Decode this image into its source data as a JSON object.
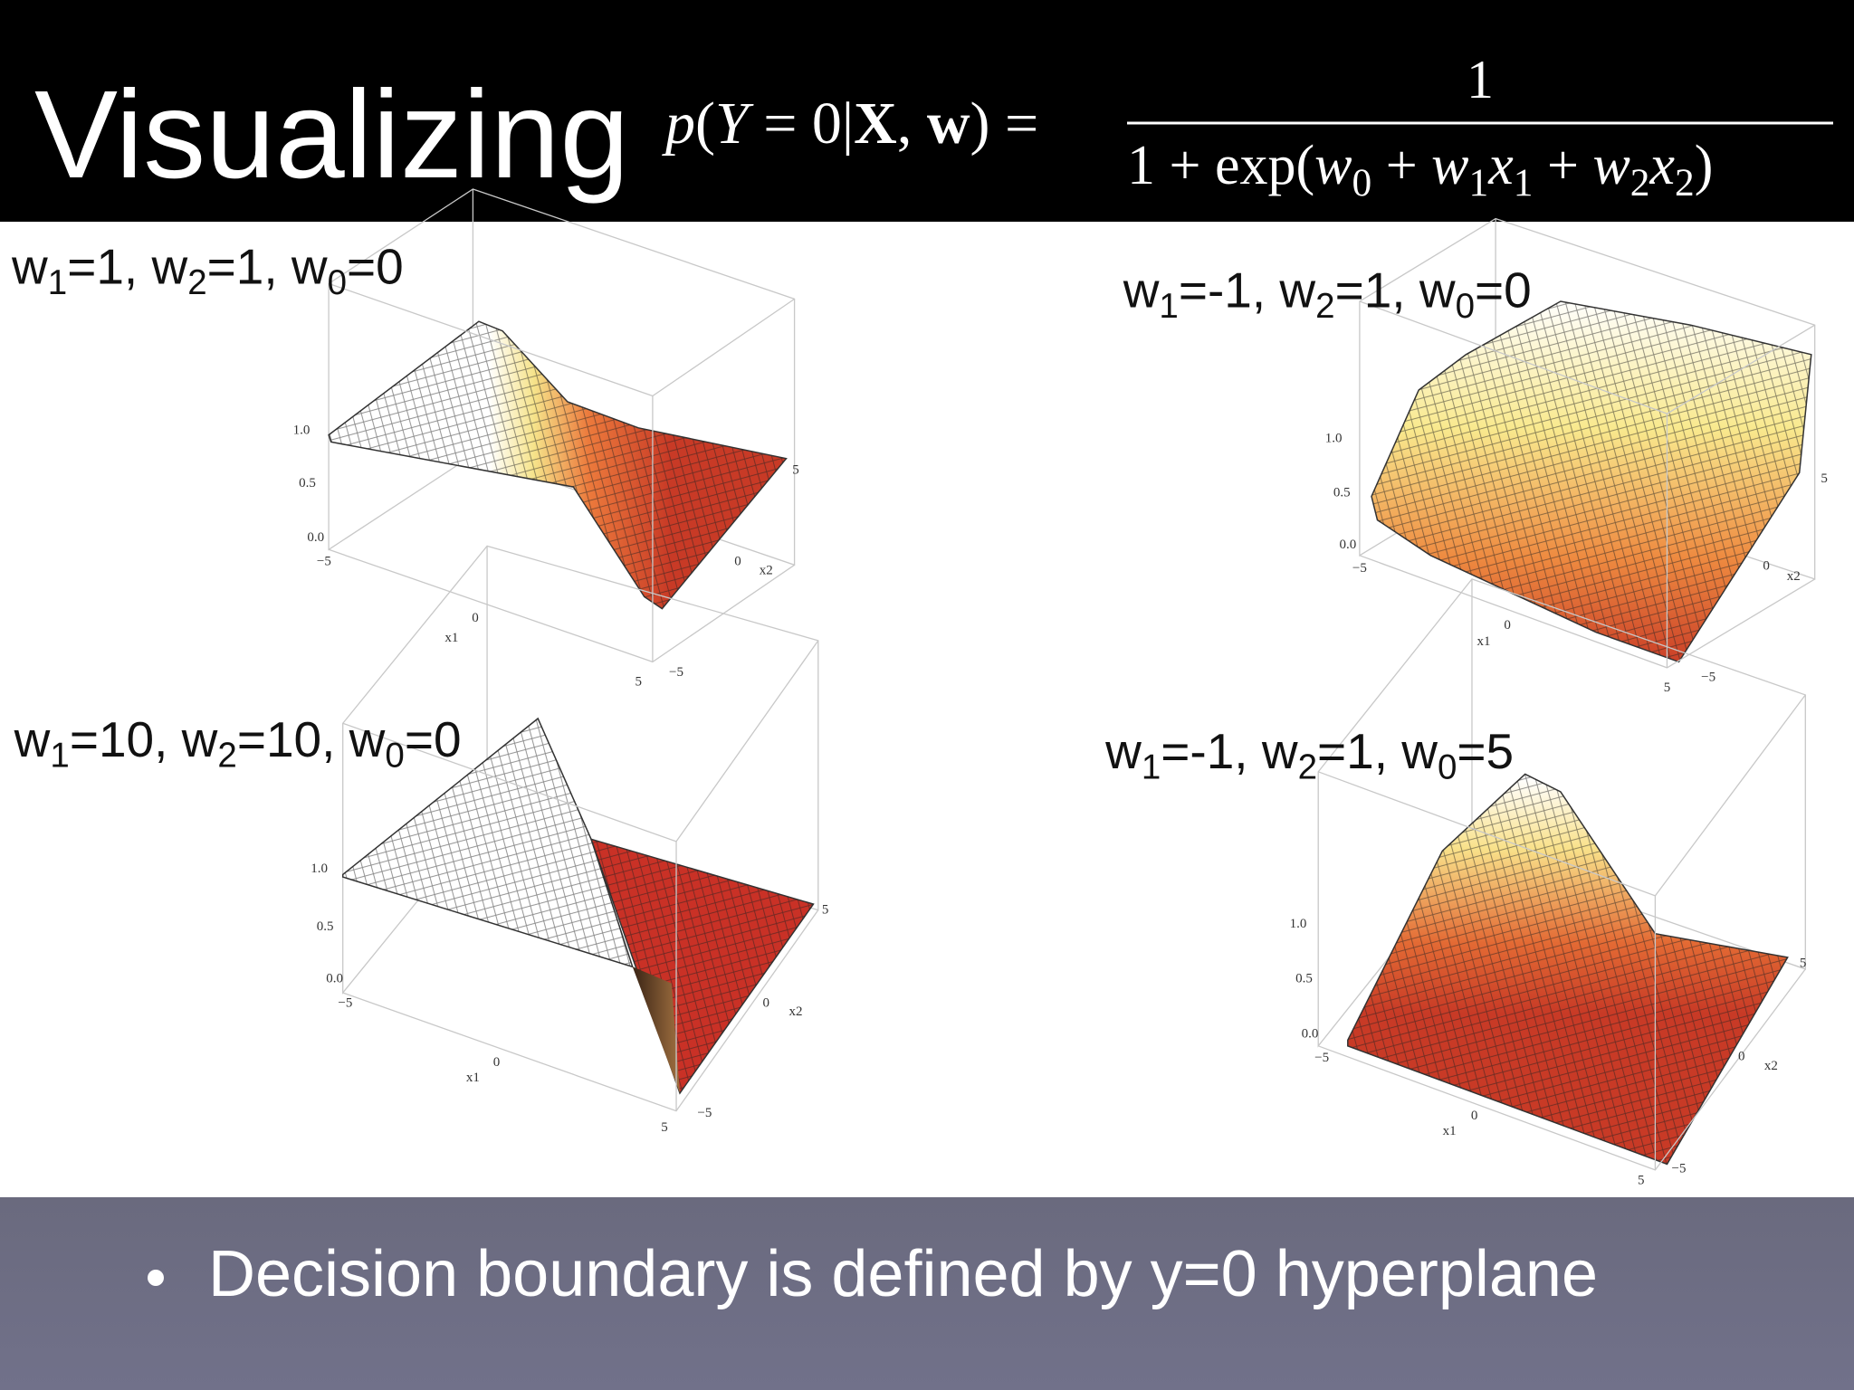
{
  "header": {
    "title": "Visualizing",
    "formula": {
      "lhs": [
        {
          "t": "p",
          "s": "i"
        },
        {
          "t": "("
        },
        {
          "t": "Y",
          "s": "i"
        },
        {
          "t": " = 0|"
        },
        {
          "t": "X",
          "s": "b"
        },
        {
          "t": ", "
        },
        {
          "t": "w",
          "s": "b"
        },
        {
          "t": ") ="
        }
      ],
      "numerator": "1",
      "denominator": [
        {
          "t": "1 + exp("
        },
        {
          "t": "w",
          "s": "i"
        },
        {
          "t": "0",
          "s": "sub"
        },
        {
          "t": " + "
        },
        {
          "t": "w",
          "s": "i"
        },
        {
          "t": "1",
          "s": "sub"
        },
        {
          "t": "x",
          "s": "i"
        },
        {
          "t": "1",
          "s": "sub"
        },
        {
          "t": " + "
        },
        {
          "t": "w",
          "s": "i"
        },
        {
          "t": "2",
          "s": "sub"
        },
        {
          "t": "x",
          "s": "i"
        },
        {
          "t": "2",
          "s": "sub"
        },
        {
          "t": ")"
        }
      ]
    }
  },
  "panels": [
    {
      "label": [
        {
          "t": "w"
        },
        {
          "t": "1",
          "s": "sub"
        },
        {
          "t": "=1, w"
        },
        {
          "t": "2",
          "s": "sub"
        },
        {
          "t": "=1, w"
        },
        {
          "t": "0",
          "s": "sub"
        },
        {
          "t": "=0"
        }
      ],
      "zticks": [
        "1.0",
        "0.5",
        "0.0"
      ],
      "x1ticks": [
        "−5",
        "0",
        "5"
      ],
      "x2ticks": [
        "−5",
        "0",
        "5"
      ],
      "x1label": "x1",
      "x2label": "x2"
    },
    {
      "label": [
        {
          "t": "w"
        },
        {
          "t": "1",
          "s": "sub"
        },
        {
          "t": "=-1, w"
        },
        {
          "t": "2",
          "s": "sub"
        },
        {
          "t": "=1, w"
        },
        {
          "t": "0",
          "s": "sub"
        },
        {
          "t": "=0"
        }
      ],
      "zticks": [
        "1.0",
        "0.5",
        "0.0"
      ],
      "x1ticks": [
        "−5",
        "0",
        "5"
      ],
      "x2ticks": [
        "−5",
        "0",
        "5"
      ],
      "x1label": "x1",
      "x2label": "x2"
    },
    {
      "label": [
        {
          "t": "w"
        },
        {
          "t": "1",
          "s": "sub"
        },
        {
          "t": "=10, w"
        },
        {
          "t": "2",
          "s": "sub"
        },
        {
          "t": "=10, w"
        },
        {
          "t": "0",
          "s": "sub"
        },
        {
          "t": "=0"
        }
      ],
      "zticks": [
        "1.0",
        "0.5",
        "0.0"
      ],
      "x1ticks": [
        "−5",
        "0",
        "5"
      ],
      "x2ticks": [
        "−5",
        "0",
        "5"
      ],
      "x1label": "x1",
      "x2label": "x2"
    },
    {
      "label": [
        {
          "t": "w"
        },
        {
          "t": "1",
          "s": "sub"
        },
        {
          "t": "=-1, w"
        },
        {
          "t": "2",
          "s": "sub"
        },
        {
          "t": "=1, w"
        },
        {
          "t": "0",
          "s": "sub"
        },
        {
          "t": "=5"
        }
      ],
      "zticks": [
        "1.0",
        "0.5",
        "0.0"
      ],
      "x1ticks": [
        "−5",
        "0",
        "5"
      ],
      "x2ticks": [
        "−5",
        "0",
        "5"
      ],
      "x1label": "x1",
      "x2label": "x2"
    }
  ],
  "bullets": [
    "Decision boundary is defined by y=0 hyperplane"
  ]
}
